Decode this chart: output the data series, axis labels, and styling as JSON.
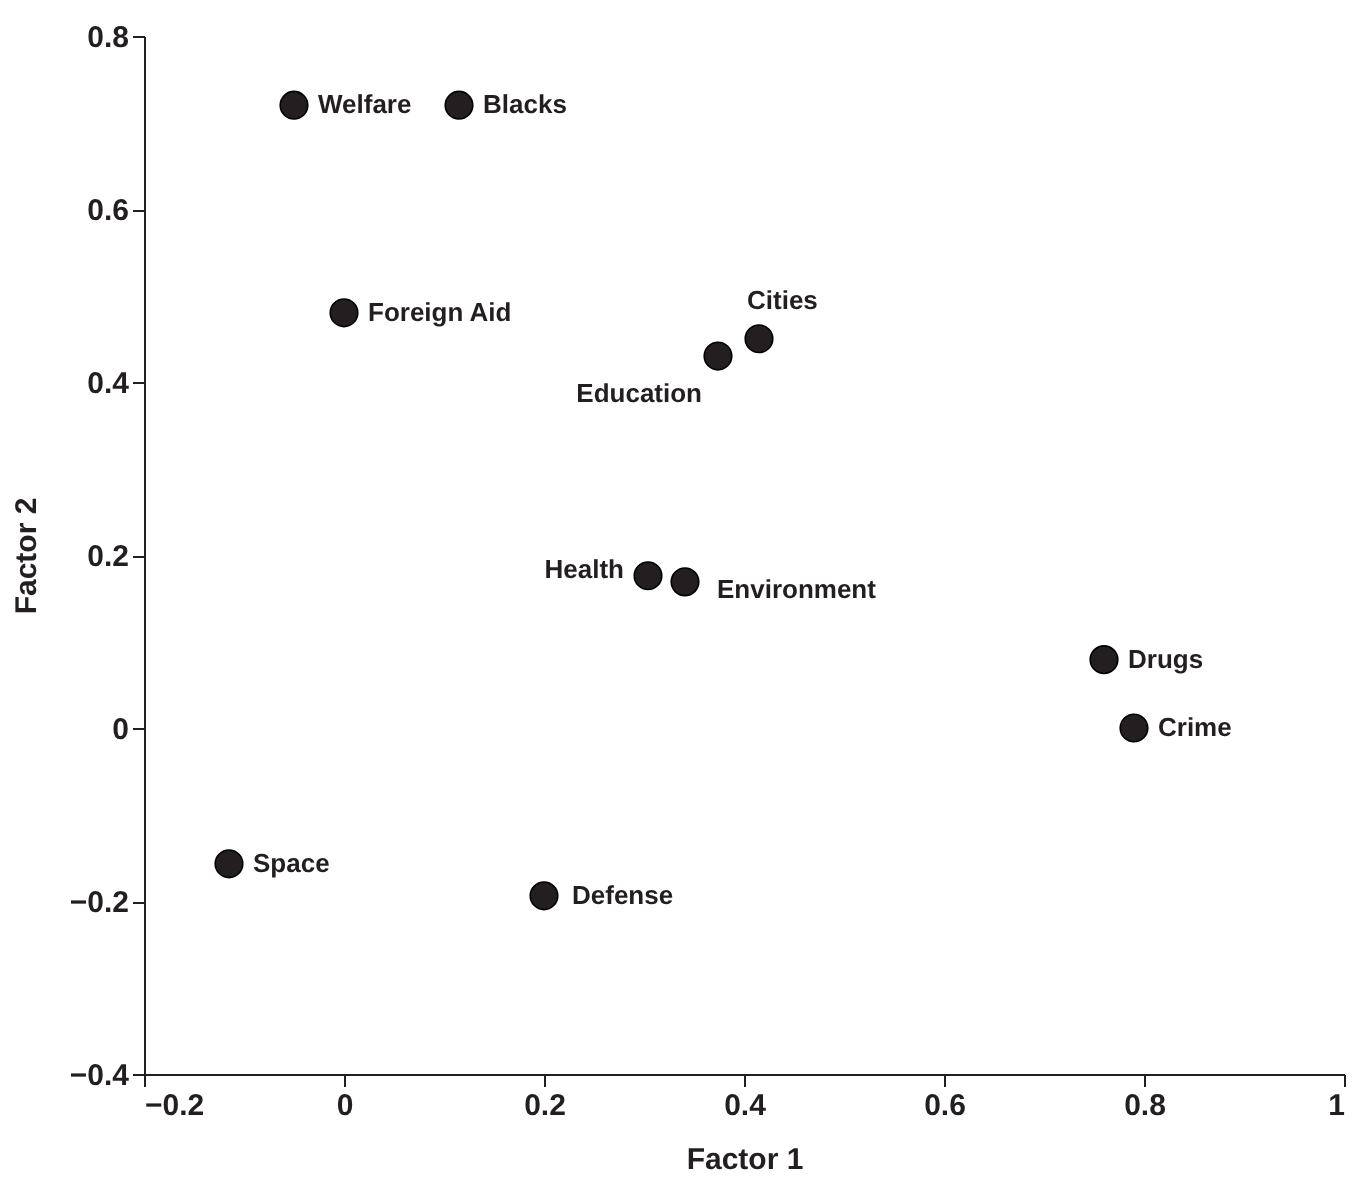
{
  "chart_data": {
    "type": "scatter",
    "xlabel": "Factor 1",
    "ylabel": "Factor 2",
    "x": [
      -0.05,
      0.115,
      0.0,
      0.415,
      0.374,
      0.304,
      0.341,
      0.76,
      0.79,
      -0.115,
      0.2
    ],
    "values": [
      0.72,
      0.72,
      0.48,
      0.45,
      0.43,
      0.176,
      0.169,
      0.079,
      0.0,
      -0.157,
      -0.194
    ],
    "color": "#231f20",
    "marker": "circle",
    "grid": false,
    "xlim": [
      -0.2,
      1.0
    ],
    "ylim": [
      -0.4,
      0.8
    ],
    "xticks": [
      {
        "value": -0.2,
        "label": "−0.2"
      },
      0,
      0.2,
      0.4,
      0.6,
      0.8,
      1
    ],
    "yticks": [
      {
        "value": -0.4,
        "label": "−0.4"
      },
      {
        "value": -0.2,
        "label": "−0.2"
      },
      0,
      0.2,
      0.4,
      0.6,
      0.8
    ],
    "annotations": [
      {
        "text": "Welfare",
        "x": -0.05,
        "y": 0.72
      },
      {
        "text": "Blacks",
        "x": 0.115,
        "y": 0.72
      },
      {
        "text": "Foreign Aid",
        "x": 0.0,
        "y": 0.48
      },
      {
        "text": "Cities",
        "x": 0.415,
        "y": 0.45
      },
      {
        "text": "Education",
        "x": 0.374,
        "y": 0.43
      },
      {
        "text": "Health",
        "x": 0.304,
        "y": 0.176
      },
      {
        "text": "Environment",
        "x": 0.341,
        "y": 0.169
      },
      {
        "text": "Drugs",
        "x": 0.76,
        "y": 0.079
      },
      {
        "text": "Crime",
        "x": 0.79,
        "y": 0.0
      },
      {
        "text": "Space",
        "x": -0.115,
        "y": -0.157
      },
      {
        "text": "Defense",
        "x": 0.2,
        "y": -0.194
      }
    ]
  }
}
